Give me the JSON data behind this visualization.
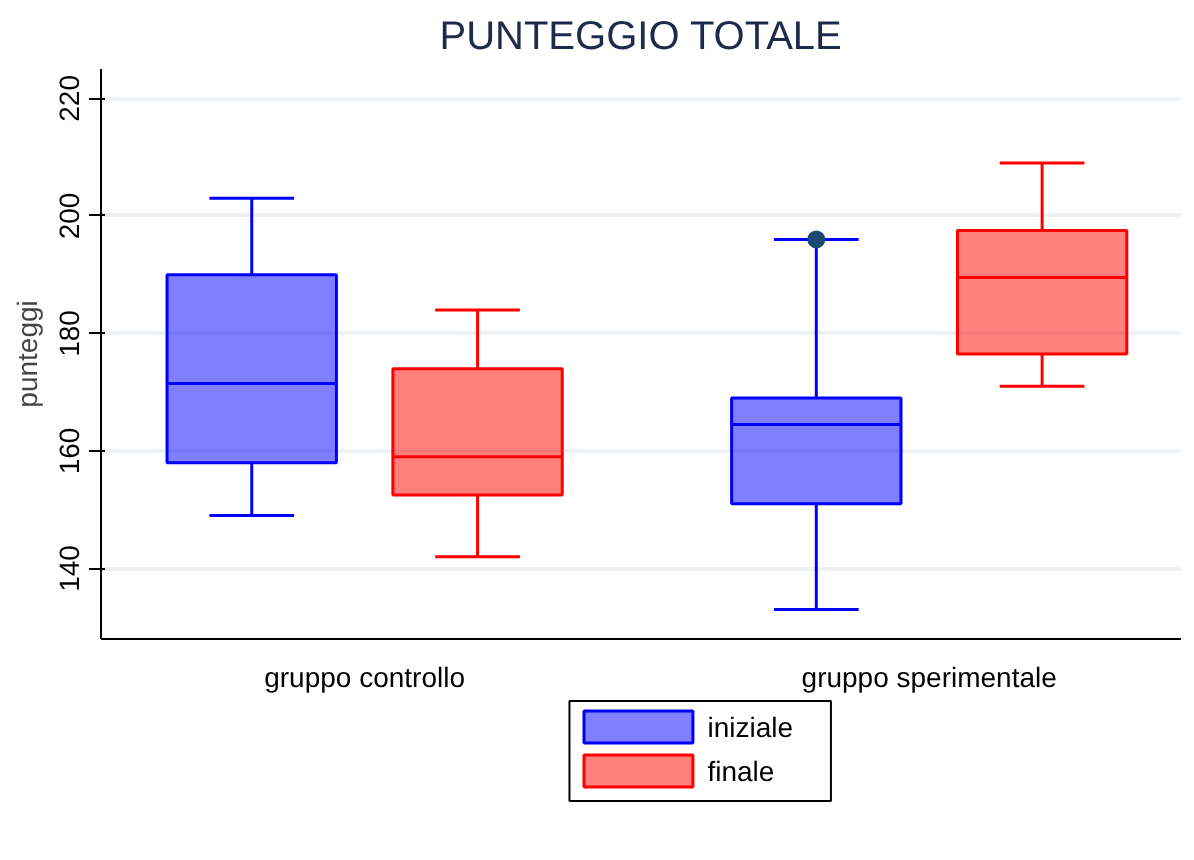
{
  "chart_data": {
    "type": "box",
    "title": "PUNTEGGIO TOTALE",
    "ylabel": "punteggi",
    "categories": [
      "gruppo controllo",
      "gruppo sperimentale"
    ],
    "series": [
      {
        "name": "iniziale",
        "color": "#0000ff",
        "boxes": [
          {
            "low": 149,
            "q1": 158,
            "median": 171.5,
            "q3": 190,
            "high": 203
          },
          {
            "low": 133,
            "q1": 151,
            "median": 164.5,
            "q3": 169,
            "high": 196,
            "outliers": [
              196
            ]
          }
        ]
      },
      {
        "name": "finale",
        "color": "#ff0000",
        "boxes": [
          {
            "low": 142,
            "q1": 152.5,
            "median": 159,
            "q3": 174,
            "high": 184
          },
          {
            "low": 171,
            "q1": 176.5,
            "median": 189.5,
            "q3": 197.5,
            "high": 209
          }
        ]
      }
    ],
    "ylim": [
      128,
      225
    ],
    "yticks": [
      140,
      160,
      180,
      200,
      220
    ],
    "grid": "y",
    "legend": "bottom"
  }
}
